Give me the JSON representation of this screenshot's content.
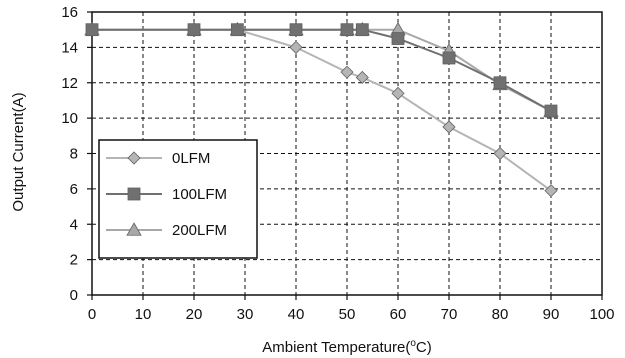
{
  "chart_data": {
    "type": "line",
    "title": "",
    "xlabel": "Ambient Temperature(",
    "xlabel_sup": "o",
    "xlabel_tail": "C)",
    "ylabel": "Output Current(A)",
    "xlim": [
      0,
      100
    ],
    "ylim": [
      0,
      16
    ],
    "x_ticks": [
      0,
      10,
      20,
      30,
      40,
      50,
      60,
      70,
      80,
      90,
      100
    ],
    "y_ticks": [
      0,
      2,
      4,
      6,
      8,
      10,
      12,
      14,
      16
    ],
    "grid": true,
    "legend_position": "bottom-left",
    "series": [
      {
        "name": "0LFM",
        "marker": "diamond",
        "color": "#b5b5b5",
        "points": [
          [
            0,
            15
          ],
          [
            20,
            15
          ],
          [
            28.5,
            15
          ],
          [
            40,
            14
          ],
          [
            50,
            12.6
          ],
          [
            53,
            12.3
          ],
          [
            60,
            11.4
          ],
          [
            70,
            9.5
          ],
          [
            80,
            8
          ],
          [
            90,
            5.9
          ]
        ]
      },
      {
        "name": "100LFM",
        "marker": "square",
        "color": "#707070",
        "points": [
          [
            0,
            15
          ],
          [
            20,
            15
          ],
          [
            28.5,
            15
          ],
          [
            40,
            15
          ],
          [
            50,
            15
          ],
          [
            53,
            15
          ],
          [
            60,
            14.5
          ],
          [
            70,
            13.4
          ],
          [
            80,
            12
          ],
          [
            90,
            10.4
          ]
        ]
      },
      {
        "name": "200LFM",
        "marker": "triangle",
        "color": "#a8a8a8",
        "points": [
          [
            0,
            15
          ],
          [
            20,
            15
          ],
          [
            28.5,
            15
          ],
          [
            40,
            15
          ],
          [
            50,
            15
          ],
          [
            53,
            15
          ],
          [
            60,
            15
          ],
          [
            70,
            13.8
          ],
          [
            80,
            11.9
          ],
          [
            90,
            10.4
          ]
        ]
      }
    ]
  }
}
